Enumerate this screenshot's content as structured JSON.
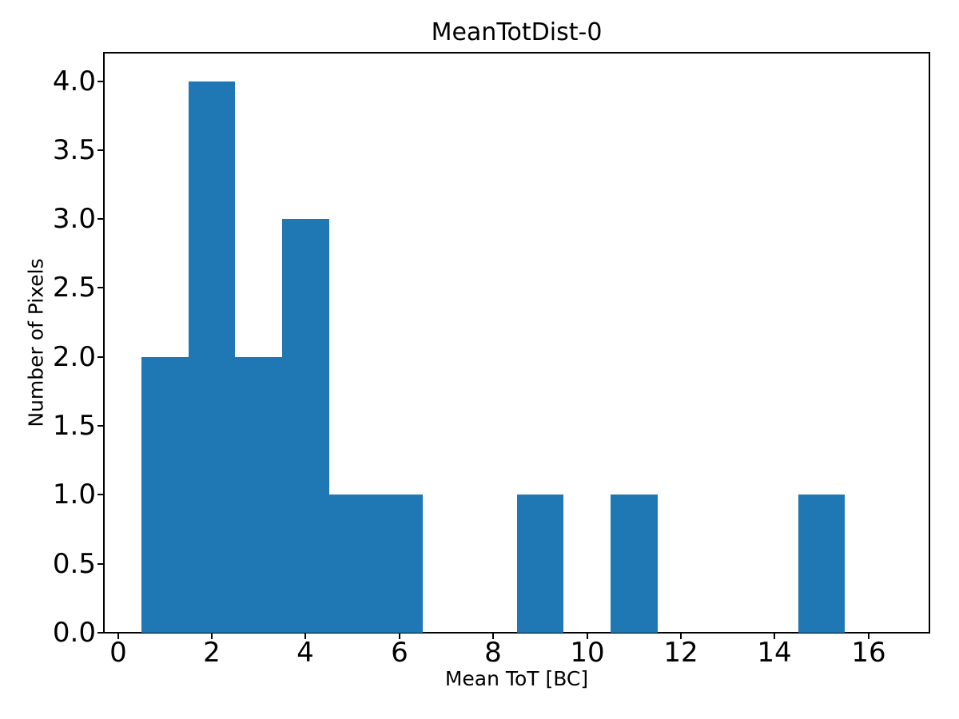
{
  "chart_data": {
    "type": "bar",
    "subtype": "histogram",
    "title": "MeanTotDist-0",
    "xlabel": "Mean ToT [BC]",
    "ylabel": "Number of Pixels",
    "bin_start": 0.5,
    "bin_width": 1,
    "counts": [
      2,
      4,
      2,
      3,
      1,
      1,
      0,
      0,
      1,
      0,
      1,
      0,
      0,
      0,
      1,
      0
    ],
    "bin_edges": [
      0.5,
      1.5,
      2.5,
      3.5,
      4.5,
      5.5,
      6.5,
      7.5,
      8.5,
      9.5,
      10.5,
      11.5,
      12.5,
      13.5,
      14.5,
      15.5,
      16.5
    ],
    "xticks": [
      "0",
      "2",
      "4",
      "6",
      "8",
      "10",
      "12",
      "14",
      "16"
    ],
    "xtick_values": [
      0,
      2,
      4,
      6,
      8,
      10,
      12,
      14,
      16
    ],
    "yticks": [
      "0.0",
      "0.5",
      "1.0",
      "1.5",
      "2.0",
      "2.5",
      "3.0",
      "3.5",
      "4.0"
    ],
    "ytick_values": [
      0,
      0.5,
      1.0,
      1.5,
      2.0,
      2.5,
      3.0,
      3.5,
      4.0
    ],
    "xlim": [
      -0.3,
      17.3
    ],
    "ylim": [
      0,
      4.2
    ],
    "bar_color": "#1f77b4",
    "axis_color": "#000000",
    "background_color": "#ffffff",
    "grid": false,
    "legend": false
  }
}
